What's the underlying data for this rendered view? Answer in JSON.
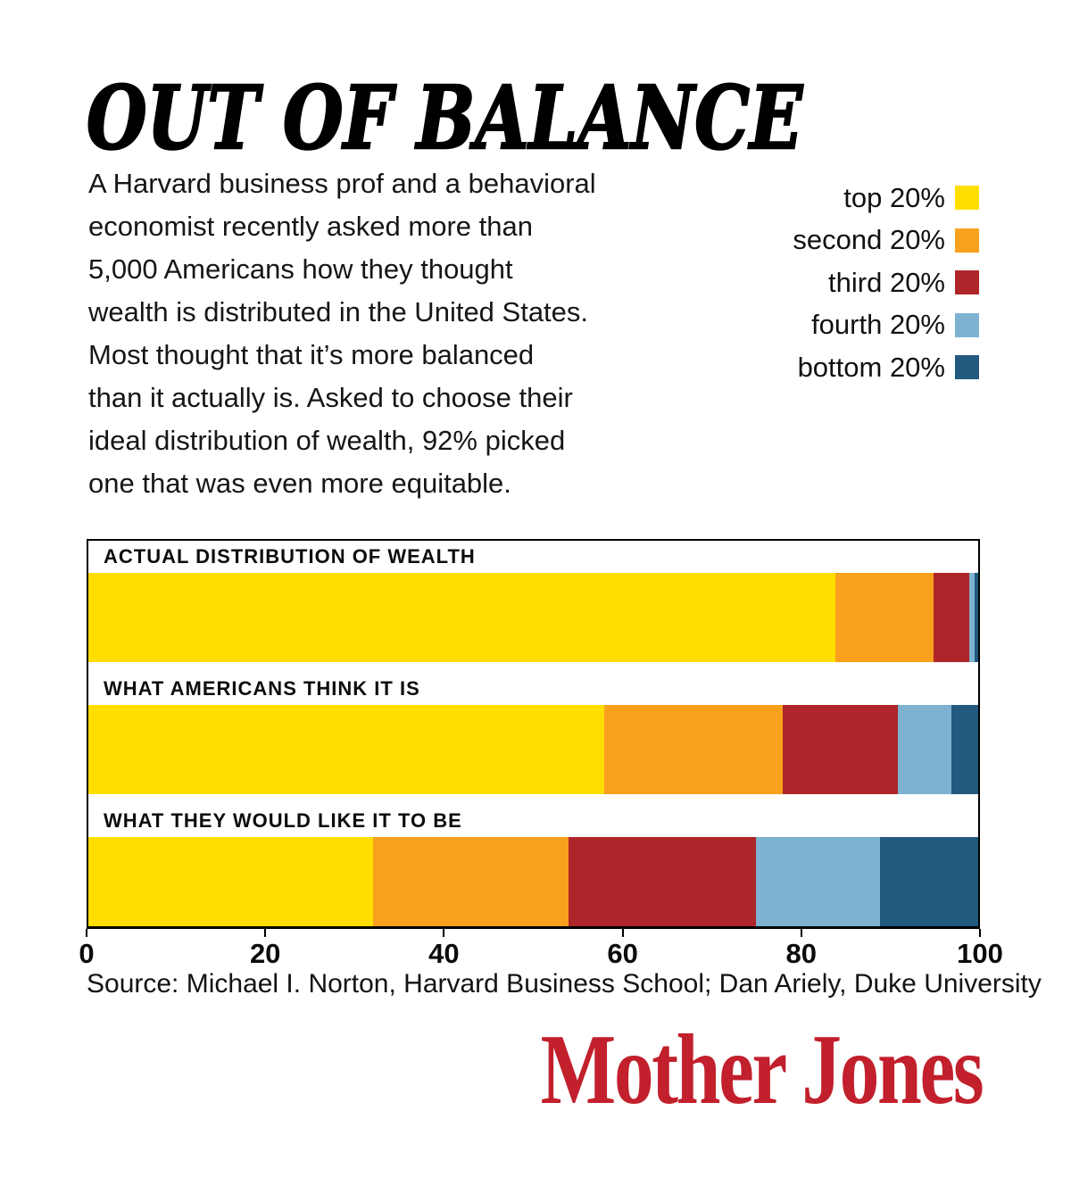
{
  "title": "OUT OF BALANCE",
  "intro": "A Harvard business prof and a behavioral\neconomist recently asked more than\n5,000 Americans how they thought\nwealth is distributed in the United States.\nMost thought that it’s more balanced\nthan it actually is. Asked to choose their\nideal distribution of wealth, 92% picked\none that was even more equitable.",
  "source": "Source: Michael I. Norton, Harvard Business School; Dan Ariely, Duke University",
  "logo": "Mother Jones",
  "colors": {
    "top_20": "#FFDE00",
    "second_20": "#F9A11C",
    "third_20": "#AE2629",
    "fourth_20": "#7DB2D1",
    "bottom_20": "#21597F",
    "logo_red": "#C2202C",
    "text": "#111111",
    "background": "#FFFFFF"
  },
  "legend": {
    "position": "top-right",
    "items": [
      {
        "label": "top 20%",
        "color": "#FFDE00"
      },
      {
        "label": "second 20%",
        "color": "#F9A11C"
      },
      {
        "label": "third 20%",
        "color": "#AE2629"
      },
      {
        "label": "fourth 20%",
        "color": "#7DB2D1"
      },
      {
        "label": "bottom 20%",
        "color": "#21597F"
      }
    ]
  },
  "chart_data": {
    "type": "bar",
    "stacked": true,
    "orientation": "horizontal",
    "unit": "percent of total wealth",
    "xlim": [
      0,
      100
    ],
    "x_ticks": [
      0,
      20,
      40,
      60,
      80,
      100
    ],
    "grid": false,
    "legend_position": "top-right",
    "categories": [
      "ACTUAL DISTRIBUTION OF WEALTH",
      "WHAT AMERICANS THINK IT IS",
      "WHAT THEY WOULD LIKE IT TO BE"
    ],
    "series": [
      {
        "name": "top 20%",
        "color": "#FFDE00",
        "values": [
          84,
          58,
          32
        ]
      },
      {
        "name": "second 20%",
        "color": "#F9A11C",
        "values": [
          11,
          20,
          22
        ]
      },
      {
        "name": "third 20%",
        "color": "#AE2629",
        "values": [
          4,
          13,
          21
        ]
      },
      {
        "name": "fourth 20%",
        "color": "#7DB2D1",
        "values": [
          0.6,
          6,
          14
        ]
      },
      {
        "name": "bottom 20%",
        "color": "#21597F",
        "values": [
          0.4,
          3,
          11
        ]
      }
    ]
  }
}
